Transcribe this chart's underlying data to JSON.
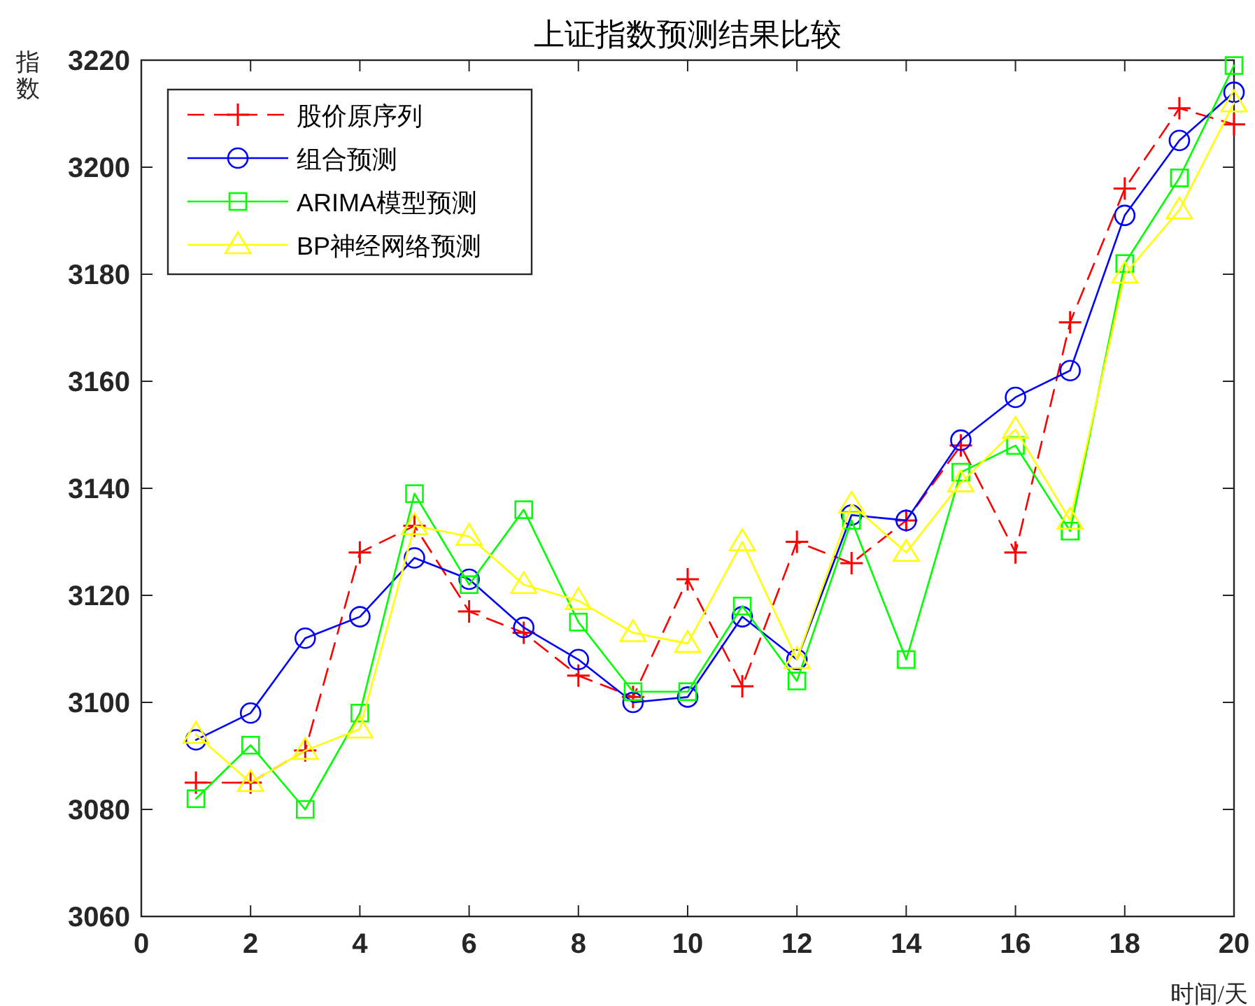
{
  "chart_data": {
    "type": "line",
    "title": "上证指数预测结果比较",
    "xlabel": "时间/天",
    "ylabel": "指数",
    "x": [
      1,
      2,
      3,
      4,
      5,
      6,
      7,
      8,
      9,
      10,
      11,
      12,
      13,
      14,
      15,
      16,
      17,
      18,
      19,
      20
    ],
    "xlim": [
      0,
      20
    ],
    "xticks": [
      0,
      2,
      4,
      6,
      8,
      10,
      12,
      14,
      16,
      18,
      20
    ],
    "ylim": [
      3060,
      3220
    ],
    "yticks": [
      3060,
      3080,
      3100,
      3120,
      3140,
      3160,
      3180,
      3200,
      3220
    ],
    "legend": "top left",
    "grid": false,
    "series": [
      {
        "name": "股价原序列",
        "color": "#ff0000",
        "marker": "cross",
        "line_style": "dashed",
        "values": [
          3085,
          3085,
          3091,
          3128,
          3133,
          3117,
          3113,
          3105,
          3101,
          3123,
          3103,
          3130,
          3126,
          3134,
          3148,
          3128,
          3171,
          3196,
          3211,
          3208
        ]
      },
      {
        "name": "组合预测",
        "color": "#0000ff",
        "marker": "circle",
        "line_style": "solid",
        "values": [
          3093,
          3098,
          3112,
          3116,
          3127,
          3123,
          3114,
          3108,
          3100,
          3101,
          3116,
          3108,
          3135,
          3134,
          3149,
          3157,
          3162,
          3191,
          3205,
          3214
        ]
      },
      {
        "name": "ARIMA模型预测",
        "color": "#00ff00",
        "marker": "square",
        "line_style": "solid",
        "values": [
          3082,
          3092,
          3080,
          3098,
          3139,
          3122,
          3136,
          3115,
          3102,
          3102,
          3118,
          3104,
          3134,
          3108,
          3143,
          3148,
          3132,
          3182,
          3198,
          3219
        ]
      },
      {
        "name": "BP神经网络预测",
        "color": "#ffff00",
        "marker": "triangle",
        "line_style": "solid",
        "values": [
          3094,
          3085,
          3091,
          3095,
          3133,
          3131,
          3122,
          3119,
          3113,
          3111,
          3130,
          3108,
          3137,
          3128,
          3141,
          3151,
          3134,
          3180,
          3192,
          3212
        ]
      }
    ]
  }
}
